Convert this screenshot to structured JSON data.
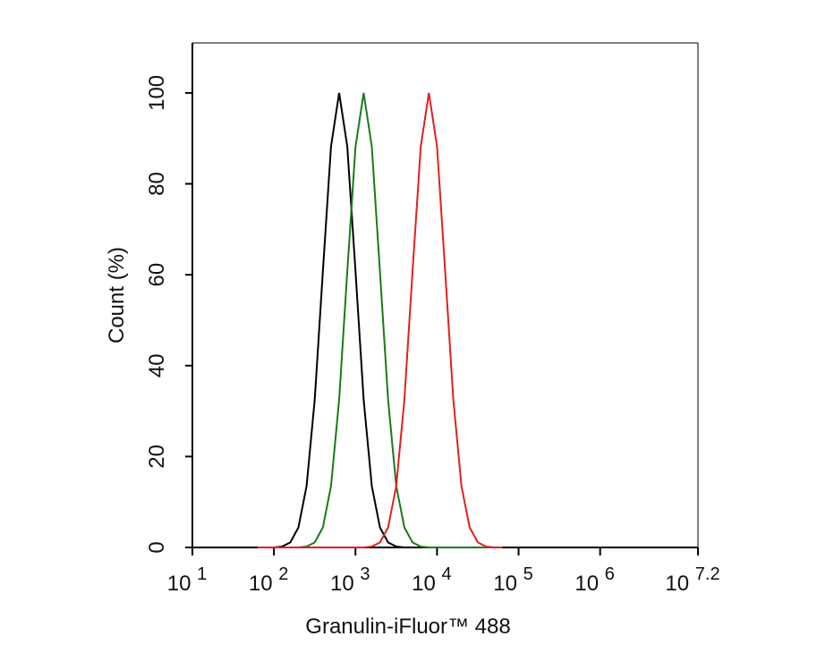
{
  "chart_data": {
    "type": "line",
    "x_label": "Granulin-iFluor™ 488",
    "y_label": "Count  (%)",
    "x_scale": "log",
    "x": [
      63.1,
      79.4,
      100,
      125.9,
      158.5,
      199.5,
      251.2,
      316.2,
      398.1,
      501.2,
      631,
      794.3,
      1000,
      1258.9,
      1584.9,
      1995.3,
      2511.9,
      3162.3,
      3981.1,
      5011.9,
      6309.6,
      7943.3,
      10000,
      12589,
      15849,
      19953,
      25119,
      31623,
      39811,
      50119,
      63096
    ],
    "series": [
      {
        "color": "#000000",
        "values": [
          0,
          0,
          0,
          0.2,
          1.1,
          4.4,
          13.5,
          32.5,
          60.7,
          88.2,
          100,
          88.2,
          60.7,
          32.5,
          13.5,
          4.4,
          1.1,
          0.2,
          0,
          0,
          0,
          0,
          0,
          0,
          0,
          0,
          0,
          0,
          0,
          0,
          0
        ]
      },
      {
        "color": "#1a7a1a",
        "values": [
          0,
          0,
          0,
          0,
          0,
          0,
          0.2,
          1.1,
          4.4,
          13.5,
          32.5,
          60.7,
          88.2,
          100,
          88.2,
          60.7,
          32.5,
          13.5,
          4.4,
          1.1,
          0.2,
          0,
          0,
          0,
          0,
          0,
          0,
          0,
          0,
          0,
          0
        ]
      },
      {
        "color": "#e02020",
        "values": [
          0,
          0,
          0,
          0,
          0,
          0,
          0,
          0,
          0,
          0,
          0,
          0,
          0,
          0,
          0.2,
          1.1,
          4.4,
          13.5,
          32.5,
          60.7,
          88.2,
          100,
          88.2,
          60.7,
          32.5,
          13.5,
          4.4,
          1.1,
          0.2,
          0,
          0
        ]
      }
    ],
    "xlim": [
      10,
      15848932
    ],
    "xticks": [
      {
        "value": 10,
        "label": "10^1"
      },
      {
        "value": 100,
        "label": "10^2"
      },
      {
        "value": 1000,
        "label": "10^3"
      },
      {
        "value": 10000,
        "label": "10^4"
      },
      {
        "value": 100000,
        "label": "10^5"
      },
      {
        "value": 1000000,
        "label": "10^6"
      },
      {
        "value": 15848932,
        "label": "10^7.2"
      }
    ],
    "ylim": [
      0,
      111
    ],
    "yticks": [
      0,
      20,
      40,
      60,
      80,
      100
    ]
  }
}
